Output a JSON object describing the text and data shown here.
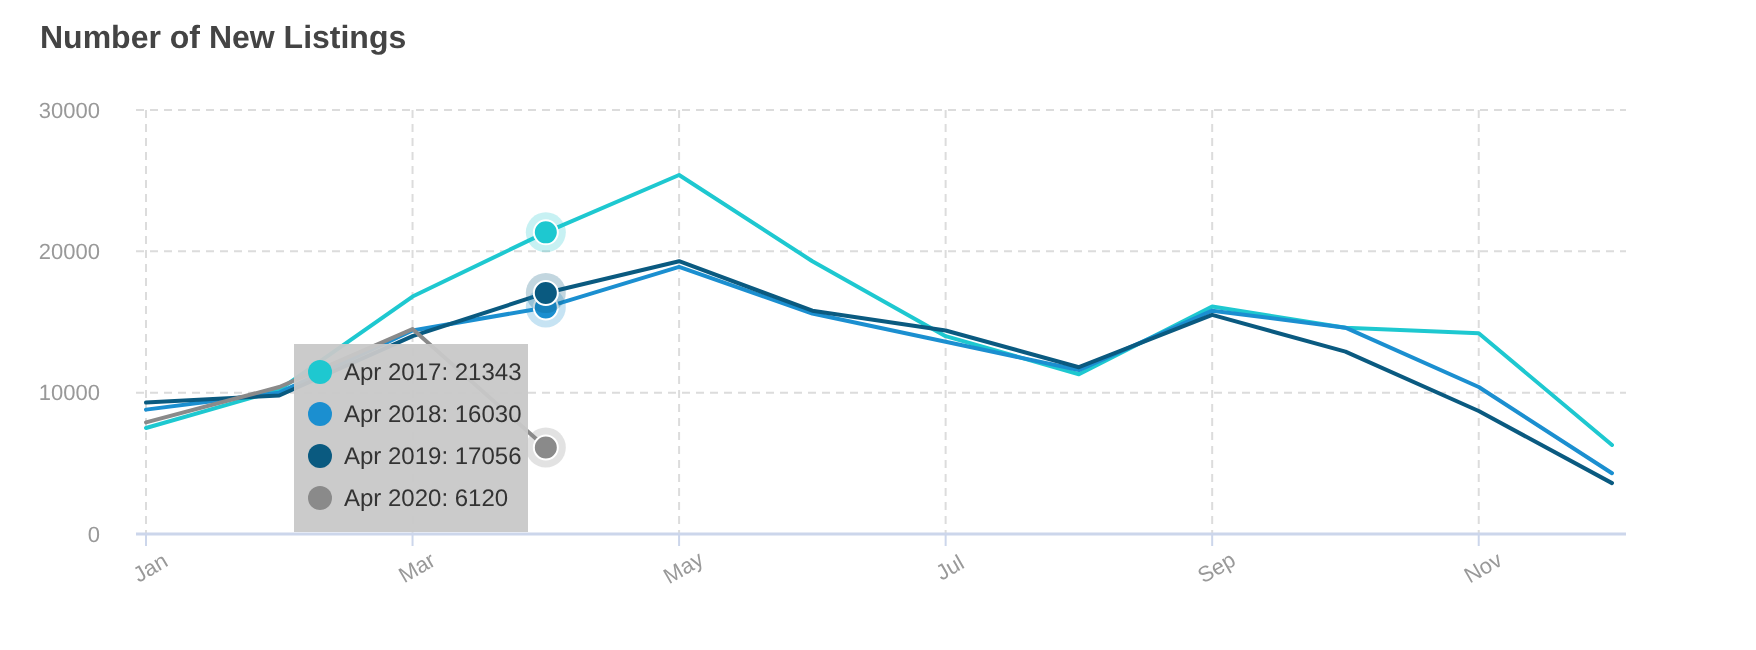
{
  "chart_data": {
    "type": "line",
    "title": "Number of New Listings",
    "categories": [
      "Jan",
      null,
      "Mar",
      null,
      "May",
      null,
      "Jul",
      null,
      "Sep",
      null,
      "Nov",
      null
    ],
    "series": [
      {
        "name": "Apr 2017: 21343",
        "color": "#1ec8d0",
        "values": [
          7500,
          10200,
          16800,
          21343,
          25400,
          19300,
          14000,
          11300,
          16100,
          14600,
          14200,
          6300
        ]
      },
      {
        "name": "Apr 2018: 16030",
        "color": "#1b8fd0",
        "values": [
          8800,
          10000,
          14400,
          16030,
          18900,
          15600,
          13600,
          11600,
          15800,
          14600,
          10400,
          4300
        ]
      },
      {
        "name": "Apr 2019: 17056",
        "color": "#0a5a80",
        "values": [
          9300,
          9800,
          14000,
          17056,
          19300,
          15800,
          14400,
          11800,
          15500,
          12900,
          8700,
          3600
        ]
      },
      {
        "name": "Apr 2020: 6120",
        "color": "#8a8a8a",
        "values": [
          7900,
          10400,
          14500,
          6120,
          null,
          null,
          null,
          null,
          null,
          null,
          null,
          null
        ]
      }
    ],
    "ylim": [
      0,
      30000
    ],
    "yticks": [
      0,
      10000,
      20000,
      30000
    ],
    "grid": true,
    "legend": "left",
    "marker": "none"
  }
}
